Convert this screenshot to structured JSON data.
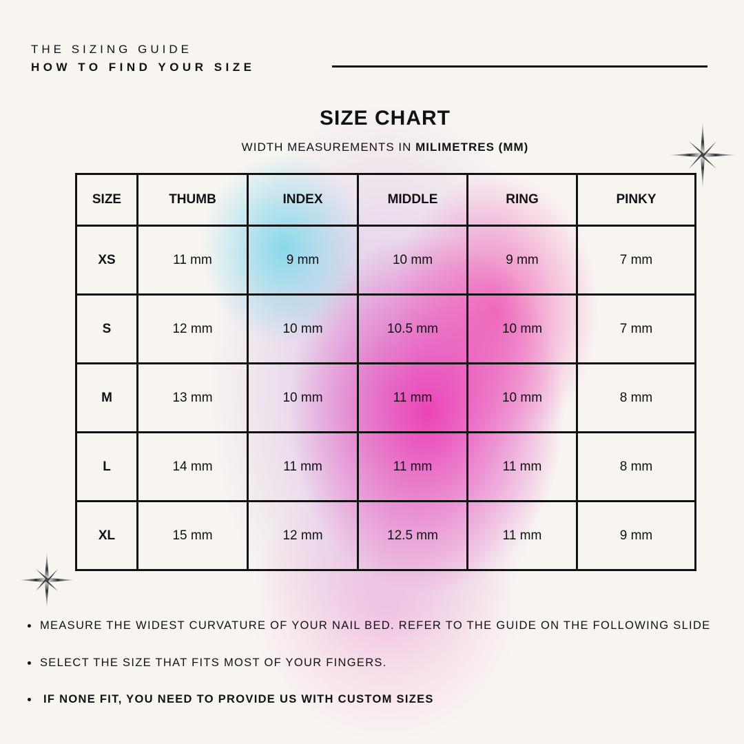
{
  "header": {
    "subtitle": "THE SIZING GUIDE",
    "title": "HOW TO FIND YOUR SIZE"
  },
  "chart": {
    "title": "SIZE CHART",
    "subtitle_prefix": "WIDTH MEASUREMENTS IN ",
    "subtitle_unit": "MILIMETRES (MM)"
  },
  "table": {
    "headers": [
      "SIZE",
      "THUMB",
      "INDEX",
      "MIDDLE",
      "RING",
      "PINKY"
    ],
    "rows": [
      [
        "XS",
        "11 mm",
        "9 mm",
        "10 mm",
        "9 mm",
        "7 mm"
      ],
      [
        "S",
        "12 mm",
        "10 mm",
        "10.5 mm",
        "10 mm",
        "7 mm"
      ],
      [
        "M",
        "13 mm",
        "10 mm",
        "11 mm",
        "10 mm",
        "8 mm"
      ],
      [
        "L",
        "14 mm",
        "11 mm",
        "11 mm",
        "11 mm",
        "8 mm"
      ],
      [
        "XL",
        "15 mm",
        "12 mm",
        "12.5 mm",
        "11 mm",
        "9 mm"
      ]
    ]
  },
  "notes": [
    "MEASURE THE WIDEST CURVATURE OF YOUR NAIL BED. REFER TO THE GUIDE ON THE FOLLOWING SLIDE",
    "SELECT THE SIZE THAT FITS MOST OF YOUR FINGERS.",
    "IF NONE FIT, YOU NEED TO PROVIDE US WITH CUSTOM SIZES"
  ],
  "colors": {
    "background": "#f8f5f1",
    "gradient_cyan": "#78d7eb",
    "gradient_pink": "#ec3cb4"
  },
  "icons": [
    "sparkle-star-icon",
    "sparkle-star-icon"
  ]
}
